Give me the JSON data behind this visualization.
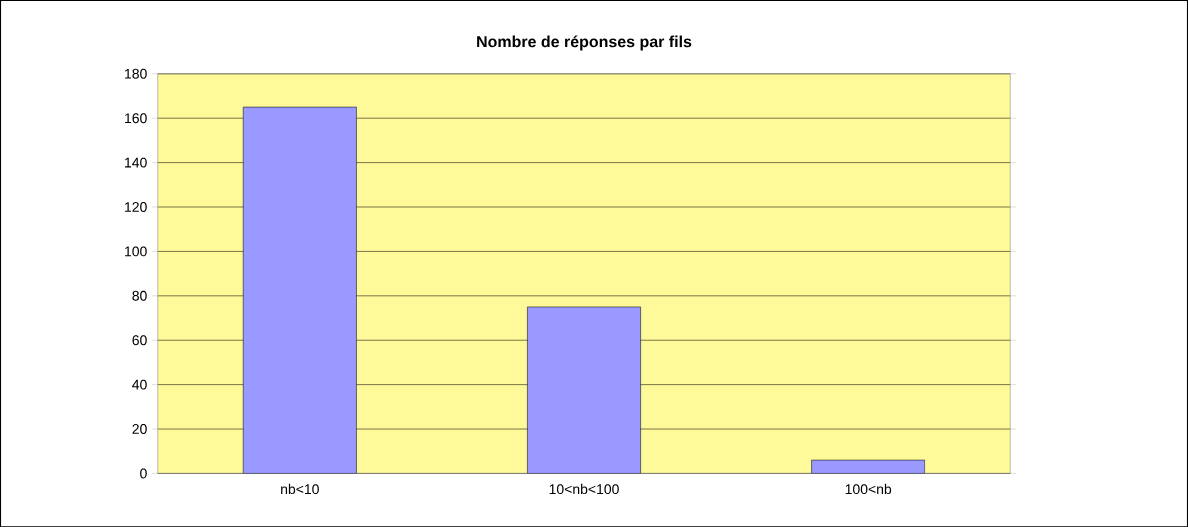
{
  "chart_data": {
    "type": "bar",
    "title": "Nombre de réponses par fils",
    "categories": [
      "nb<10",
      "10<nb<100",
      "100<nb"
    ],
    "values": [
      165,
      75,
      6
    ],
    "color": "#9999ff",
    "ylim": [
      0,
      180
    ],
    "yticks": [
      0,
      20,
      40,
      60,
      80,
      100,
      120,
      140,
      160,
      180
    ],
    "grid": "y"
  }
}
